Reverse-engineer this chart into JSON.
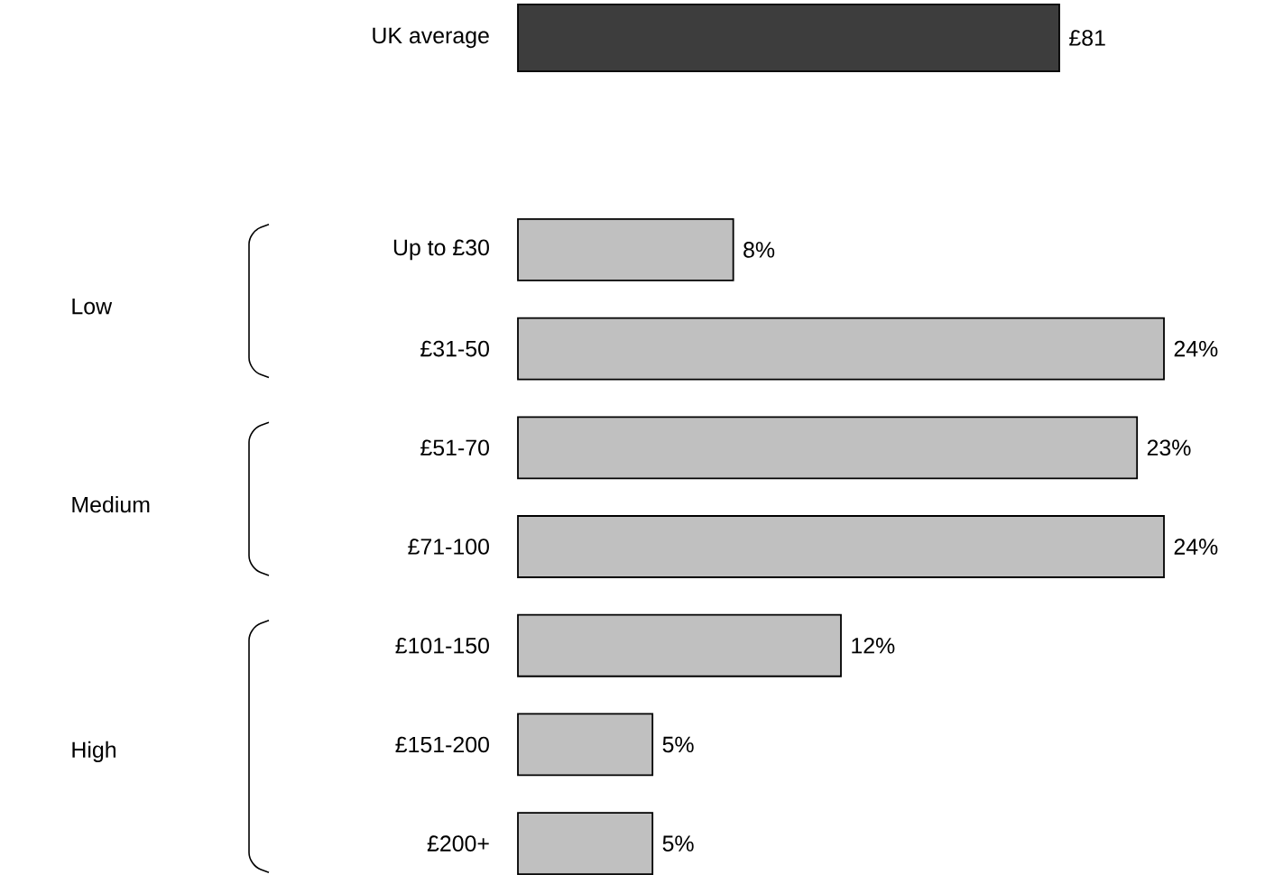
{
  "chart_data": [
    {
      "type": "bar",
      "orientation": "horizontal",
      "categories": [
        "UK average"
      ],
      "values": [
        81
      ],
      "value_labels": [
        "£81"
      ],
      "color": "#3d3d3d",
      "tick_labels": "y"
    },
    {
      "type": "bar",
      "orientation": "horizontal",
      "categories": [
        "Up to £30",
        "£31-50",
        "£51-70",
        "£71-100",
        "£101-150",
        "£151-200",
        "£200+"
      ],
      "values": [
        8,
        24,
        23,
        24,
        12,
        5,
        5
      ],
      "value_labels": [
        "8%",
        "24%",
        "23%",
        "24%",
        "12%",
        "5%",
        "5%"
      ],
      "color": "#c0c0c0",
      "tick_labels": "y",
      "annotations": [
        "Low",
        "Medium",
        "High"
      ]
    }
  ]
}
